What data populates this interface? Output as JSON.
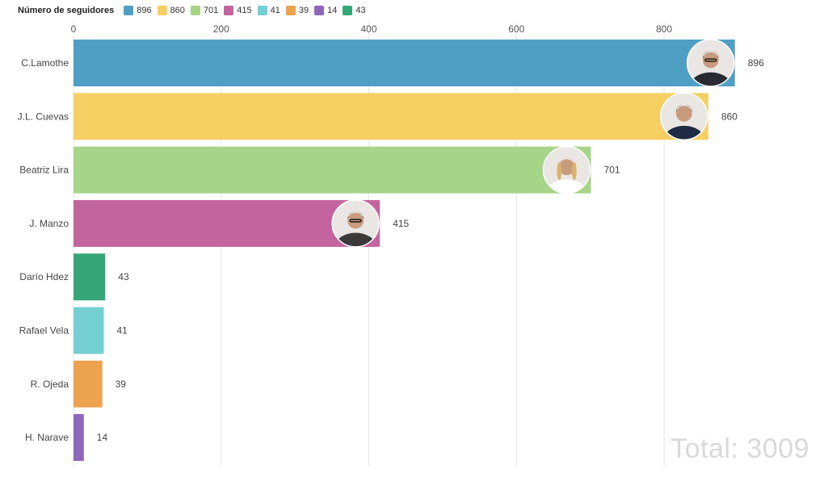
{
  "chart_data": {
    "type": "bar",
    "orientation": "horizontal",
    "legend": {
      "title": "Número de seguidores",
      "items": [
        {
          "label": "896",
          "color": "#4f9fc4"
        },
        {
          "label": "860",
          "color": "#f6cf63"
        },
        {
          "label": "701",
          "color": "#a6d58a"
        },
        {
          "label": "415",
          "color": "#c4649f"
        },
        {
          "label": "41",
          "color": "#73cfd1"
        },
        {
          "label": "39",
          "color": "#eca24e"
        },
        {
          "label": "14",
          "color": "#8d67ba"
        },
        {
          "label": "43",
          "color": "#34a677"
        }
      ]
    },
    "categories": [
      "C.Lamothe",
      "J.L. Cuevas",
      "Beatriz Lira",
      "J. Manzo",
      "Darío Hdez",
      "Rafael Vela",
      "R. Ojeda",
      "H. Narave"
    ],
    "values": [
      896,
      860,
      701,
      415,
      43,
      41,
      39,
      14
    ],
    "value_labels": [
      "896",
      "860",
      "701",
      "415",
      "43",
      "41",
      "39",
      "14"
    ],
    "colors": [
      "#4f9fc4",
      "#f6cf63",
      "#a6d58a",
      "#c4649f",
      "#34a677",
      "#73cfd1",
      "#eca24e",
      "#8d67ba"
    ],
    "photos": [
      true,
      true,
      true,
      true,
      false,
      false,
      false,
      false
    ],
    "xlim": [
      0,
      960
    ],
    "xticks": [
      0,
      200,
      400,
      600,
      800
    ],
    "xtick_labels": [
      "0",
      "200",
      "400",
      "600",
      "800"
    ],
    "grid": true,
    "legend_position": "top-left"
  },
  "total_label": "Total: 3009"
}
